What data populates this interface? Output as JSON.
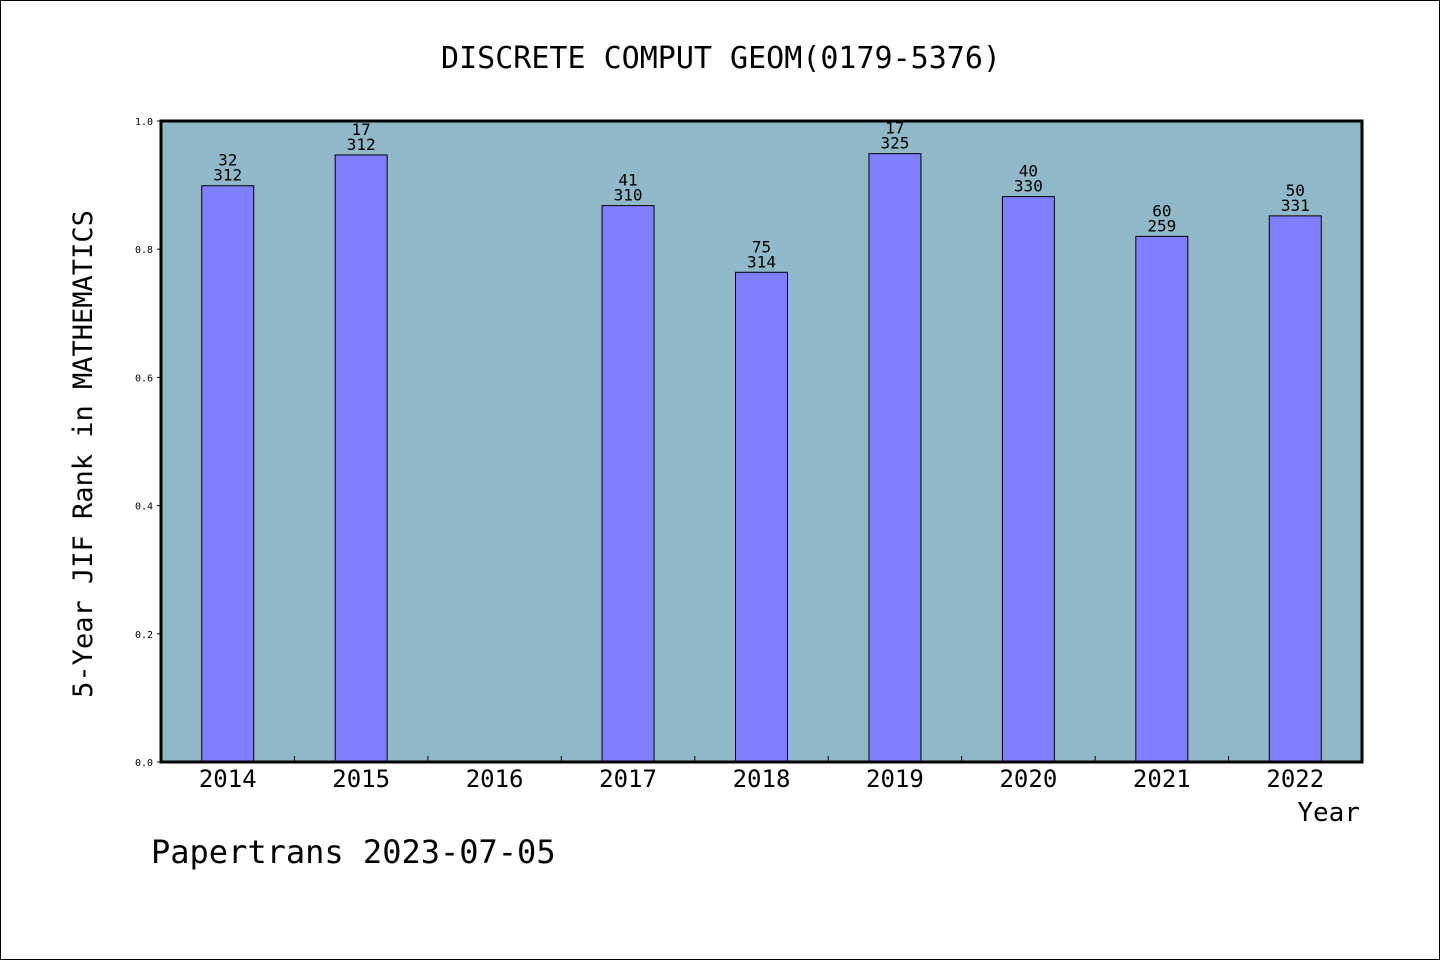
{
  "chart_data": {
    "type": "bar",
    "title": "DISCRETE COMPUT GEOM(0179-5376)",
    "xlabel": "Year",
    "ylabel": "5-Year JIF Rank in MATHEMATICS",
    "categories": [
      "2014",
      "2015",
      "2016",
      "2017",
      "2018",
      "2019",
      "2020",
      "2021",
      "2022"
    ],
    "values": [
      0.899,
      0.947,
      null,
      0.868,
      0.764,
      0.949,
      0.882,
      0.82,
      0.852
    ],
    "rank": [
      "32",
      "17",
      "",
      "41",
      "75",
      "17",
      "40",
      "60",
      "50"
    ],
    "total": [
      "312",
      "312",
      "",
      "310",
      "314",
      "325",
      "330",
      "259",
      "331"
    ],
    "ylim": [
      0,
      1.0
    ],
    "yticks": [
      "0.0",
      "0.2",
      "0.4",
      "0.6",
      "0.8",
      "1.0"
    ],
    "grid": false,
    "bar_color": "#8080ff",
    "plot_background": "#90b8c8"
  },
  "footer": "Papertrans 2023-07-05"
}
